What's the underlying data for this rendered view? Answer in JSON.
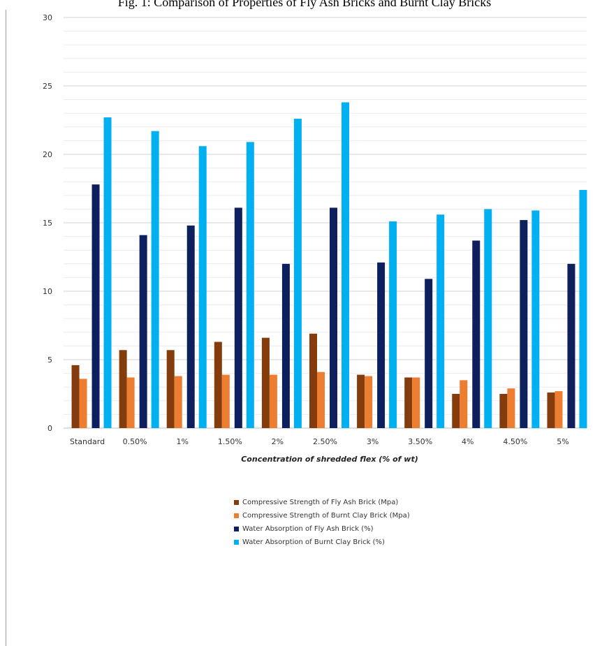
{
  "title": "Fig. 1: Comparison of Properties of Fly Ash Bricks and Burnt Clay Bricks",
  "chart_data": {
    "type": "bar",
    "title": "Fig. 1: Comparison of Properties of Fly Ash Bricks and Burnt Clay Bricks",
    "xlabel": "Concentration of shredded flex (% of wt)",
    "ylabel": "",
    "ylim": [
      0,
      30
    ],
    "yticks": [
      0,
      5,
      10,
      15,
      20,
      25,
      30
    ],
    "grid": true,
    "legend_position": "bottom",
    "categories": [
      "Standard",
      "0.50%",
      "1%",
      "1.50%",
      "2%",
      "2.50%",
      "3%",
      "3.50%",
      "4%",
      "4.50%",
      "5%"
    ],
    "series": [
      {
        "name": "Compressive Strength of Fly Ash Brick (Mpa)",
        "color": "#843c0c",
        "values": [
          4.6,
          5.7,
          5.7,
          6.3,
          6.6,
          6.9,
          3.9,
          3.7,
          2.5,
          2.5,
          2.6
        ]
      },
      {
        "name": "Compressive Strength of Burnt Clay Brick (Mpa)",
        "color": "#ed7d31",
        "values": [
          3.6,
          3.7,
          3.8,
          3.9,
          3.9,
          4.1,
          3.8,
          3.7,
          3.5,
          2.9,
          2.7
        ]
      },
      {
        "name": "Water Absorption of Fly Ash Brick (%)",
        "color": "#0d1f5c",
        "values": [
          17.8,
          14.1,
          14.8,
          16.1,
          12.0,
          16.1,
          12.1,
          10.9,
          13.7,
          15.2,
          12.0
        ]
      },
      {
        "name": "Water Absorption of Burnt Clay Brick (%)",
        "color": "#00b0f0",
        "values": [
          22.7,
          21.7,
          20.6,
          20.9,
          22.6,
          23.8,
          15.1,
          15.6,
          16.0,
          15.9,
          17.4
        ]
      }
    ]
  }
}
